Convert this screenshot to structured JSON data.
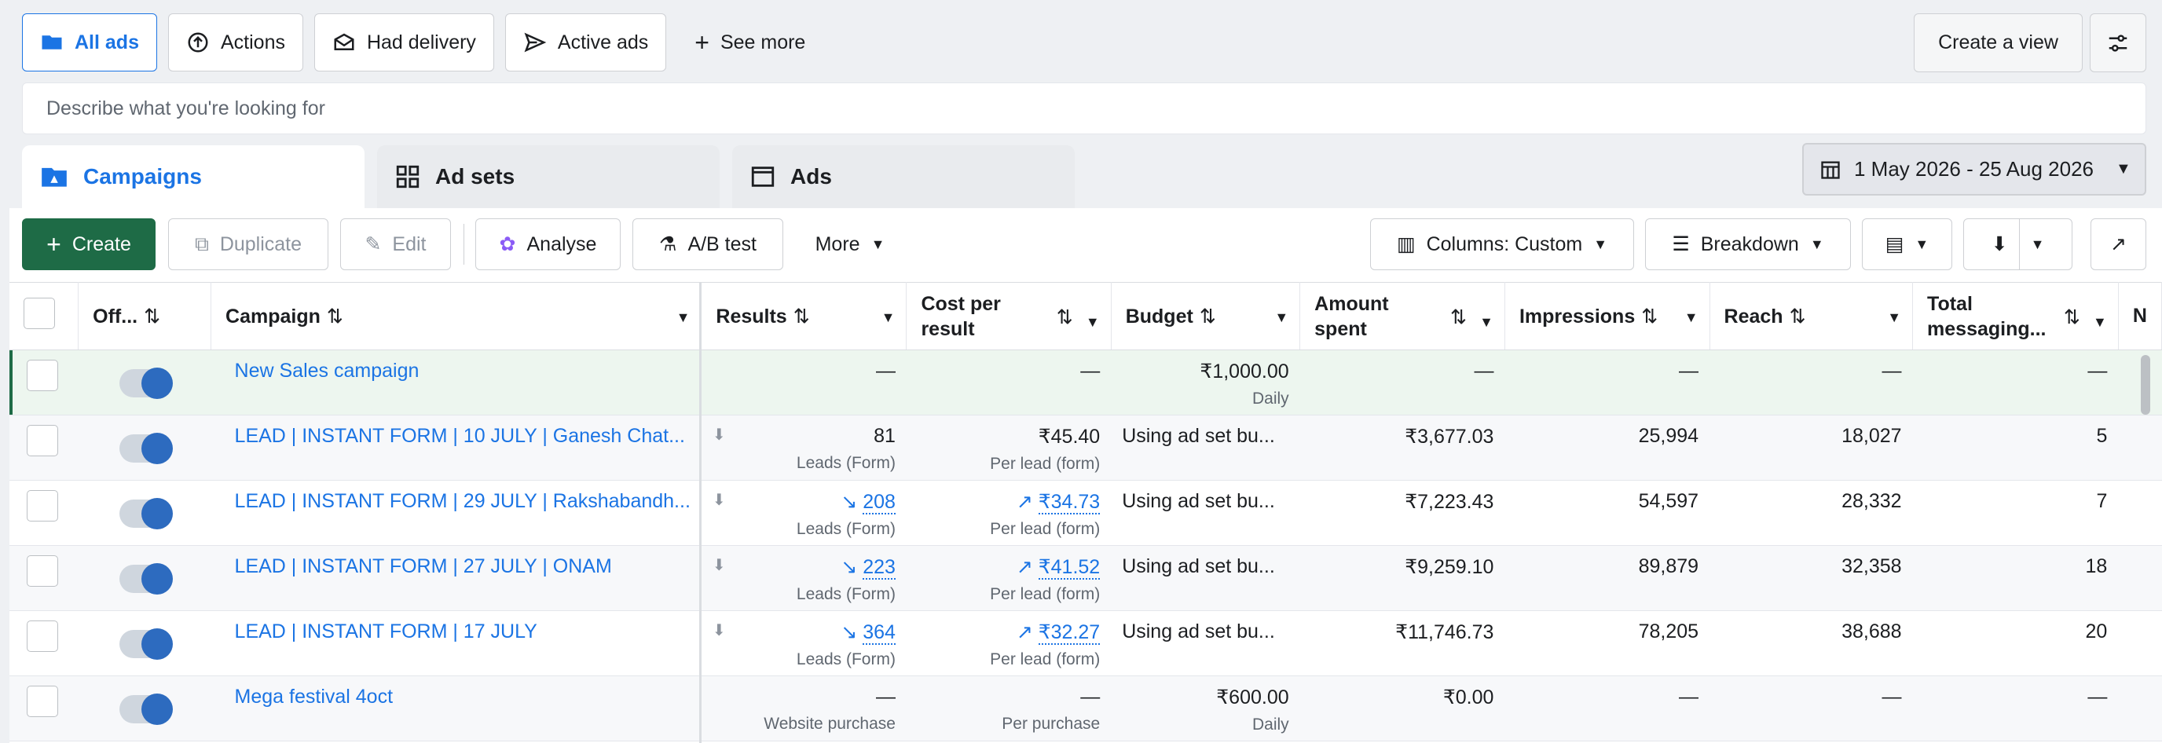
{
  "filters": {
    "all_ads": "All ads",
    "actions": "Actions",
    "had_delivery": "Had delivery",
    "active_ads": "Active ads",
    "see_more": "See more"
  },
  "create_view": "Create a view",
  "search": {
    "placeholder": "Describe what you're looking for"
  },
  "tabs": {
    "campaigns": "Campaigns",
    "ad_sets": "Ad sets",
    "ads": "Ads"
  },
  "date_range": "1 May 2026 - 25 Aug 2026",
  "toolbar": {
    "create": "Create",
    "duplicate": "Duplicate",
    "edit": "Edit",
    "analyse": "Analyse",
    "ab_test": "A/B test",
    "more": "More",
    "columns": "Columns: Custom",
    "breakdown": "Breakdown"
  },
  "headers": {
    "off": "Off...",
    "campaign": "Campaign",
    "results": "Results",
    "cost1": "Cost per",
    "cost2": "result",
    "budget": "Budget",
    "amount1": "Amount",
    "amount2": "spent",
    "impressions": "Impressions",
    "reach": "Reach",
    "total1": "Total",
    "total2": "messaging...",
    "next": "N"
  },
  "rows": [
    {
      "name": "New Sales campaign",
      "results": "—",
      "results_sub": "",
      "cost": "—",
      "cost_sub": "",
      "budget": "₹1,000.00",
      "budget_sub": "Daily",
      "spent": "—",
      "impressions": "—",
      "reach": "—",
      "total": "—"
    },
    {
      "name": "LEAD | INSTANT FORM | 10 JULY | Ganesh Chat...",
      "results": "81",
      "results_sub": "Leads (Form)",
      "cost": "₹45.40",
      "cost_sub": "Per lead (form)",
      "budget": "Using ad set bu...",
      "budget_sub": "",
      "spent": "₹3,677.03",
      "impressions": "25,994",
      "reach": "18,027",
      "total": "5"
    },
    {
      "name": "LEAD | INSTANT FORM | 29 JULY | Rakshabandh...",
      "results": "208",
      "results_sub": "Leads (Form)",
      "cost": "₹34.73",
      "cost_sub": "Per lead (form)",
      "budget": "Using ad set bu...",
      "budget_sub": "",
      "spent": "₹7,223.43",
      "impressions": "54,597",
      "reach": "28,332",
      "total": "7"
    },
    {
      "name": "LEAD | INSTANT FORM | 27 JULY | ONAM",
      "results": "223",
      "results_sub": "Leads (Form)",
      "cost": "₹41.52",
      "cost_sub": "Per lead (form)",
      "budget": "Using ad set bu...",
      "budget_sub": "",
      "spent": "₹9,259.10",
      "impressions": "89,879",
      "reach": "32,358",
      "total": "18"
    },
    {
      "name": "LEAD | INSTANT FORM | 17 JULY",
      "results": "364",
      "results_sub": "Leads (Form)",
      "cost": "₹32.27",
      "cost_sub": "Per lead (form)",
      "budget": "Using ad set bu...",
      "budget_sub": "",
      "spent": "₹11,746.73",
      "impressions": "78,205",
      "reach": "38,688",
      "total": "20"
    },
    {
      "name": "Mega festival 4oct",
      "results": "—",
      "results_sub": "Website purchase",
      "cost": "—",
      "cost_sub": "Per purchase",
      "budget": "₹600.00",
      "budget_sub": "Daily",
      "spent": "₹0.00",
      "impressions": "—",
      "reach": "—",
      "total": "—"
    }
  ],
  "colors": {
    "accent": "#1b74e4",
    "create": "#1e6b46"
  }
}
